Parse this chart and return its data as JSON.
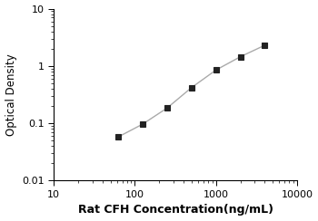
{
  "x_data": [
    62.5,
    125,
    250,
    500,
    1000,
    2000,
    4000
  ],
  "y_data": [
    0.058,
    0.097,
    0.185,
    0.42,
    0.85,
    1.45,
    2.3
  ],
  "xlabel": "Rat CFH Concentration(ng/mL)",
  "ylabel": "Optical Density",
  "xlim": [
    10,
    10000
  ],
  "ylim": [
    0.01,
    10
  ],
  "line_color": "#aaaaaa",
  "marker_color": "#222222",
  "marker": "s",
  "marker_size": 4.5,
  "line_width": 1.0,
  "xlabel_fontsize": 9,
  "ylabel_fontsize": 8.5,
  "tick_fontsize": 8,
  "xtick_labels": [
    "10",
    "100",
    "1000",
    "10000"
  ],
  "ytick_labels": [
    "0.01",
    "0.1",
    "1",
    "10"
  ],
  "xtick_vals": [
    10,
    100,
    1000,
    10000
  ],
  "ytick_vals": [
    0.01,
    0.1,
    1,
    10
  ]
}
